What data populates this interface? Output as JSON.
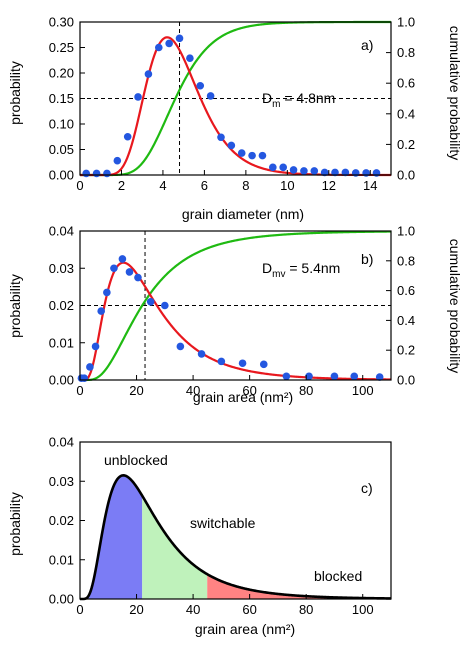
{
  "chart_data": [
    {
      "id": "a",
      "type": "scatter",
      "panel_label": "a)",
      "xlabel": "grain diameter (nm)",
      "ylabel": "probability",
      "y2label": "cumulative probability",
      "xlim": [
        0,
        15
      ],
      "ylim": [
        0,
        0.3
      ],
      "y2lim": [
        0,
        1.0
      ],
      "x_ticks": [
        0,
        2,
        4,
        6,
        8,
        10,
        12,
        14
      ],
      "y_ticks": [
        0.0,
        0.05,
        0.1,
        0.15,
        0.2,
        0.25,
        0.3
      ],
      "y_tick_labels": [
        "0.00",
        "0.05",
        "0.10",
        "0.15",
        "0.20",
        "0.25",
        "0.30"
      ],
      "y2_ticks": [
        0.0,
        0.2,
        0.4,
        0.6,
        0.8,
        1.0
      ],
      "y2_tick_labels": [
        "0.0",
        "0.2",
        "0.4",
        "0.6",
        "0.8",
        "1.0"
      ],
      "annotation": {
        "main": "D",
        "sub": "m",
        "rest": " = 4.8nm"
      },
      "mean_marker": {
        "x": 4.8,
        "cumulative_level": 0.5
      },
      "fit": {
        "dist": "lognormal",
        "median": 4.6,
        "sigma": 0.3,
        "peak_density": 0.27,
        "color": "#e8181e"
      },
      "cumulative_color": "#1fba12",
      "point_color": "#2457e0",
      "points": {
        "x": [
          0.3,
          0.8,
          1.3,
          1.8,
          2.3,
          2.8,
          3.3,
          3.8,
          4.3,
          4.8,
          5.3,
          5.8,
          6.3,
          6.8,
          7.3,
          7.8,
          8.3,
          8.8,
          9.3,
          9.8,
          10.3,
          10.8,
          11.3,
          11.8,
          12.3,
          12.8,
          13.3,
          13.8,
          14.3
        ],
        "y": [
          0.003,
          0.003,
          0.003,
          0.028,
          0.075,
          0.153,
          0.198,
          0.25,
          0.258,
          0.268,
          0.229,
          0.175,
          0.155,
          0.074,
          0.058,
          0.043,
          0.038,
          0.038,
          0.015,
          0.015,
          0.01,
          0.008,
          0.008,
          0.005,
          0.005,
          0.005,
          0.004,
          0.004,
          0.004
        ]
      }
    },
    {
      "id": "b",
      "type": "scatter",
      "panel_label": "b)",
      "xlabel": "grain area (nm²)",
      "ylabel": "probability",
      "y2label": "cumulative probability",
      "xlim": [
        0,
        110
      ],
      "ylim": [
        0,
        0.04
      ],
      "y2lim": [
        0,
        1.0
      ],
      "x_ticks": [
        0,
        20,
        40,
        60,
        80,
        100
      ],
      "y_ticks": [
        0.0,
        0.01,
        0.02,
        0.03,
        0.04
      ],
      "y_tick_labels": [
        "0.00",
        "0.01",
        "0.02",
        "0.03",
        "0.04"
      ],
      "y2_ticks": [
        0.0,
        0.2,
        0.4,
        0.6,
        0.8,
        1.0
      ],
      "y2_tick_labels": [
        "0.0",
        "0.2",
        "0.4",
        "0.6",
        "0.8",
        "1.0"
      ],
      "annotation": {
        "main": "D",
        "sub": "mv",
        "rest": " = 5.4nm"
      },
      "mean_marker": {
        "x": 23,
        "cumulative_level": 0.5
      },
      "fit": {
        "dist": "lognormal",
        "median": 22,
        "sigma": 0.6,
        "peak_density": 0.0315,
        "color": "#e8181e"
      },
      "cumulative_color": "#1fba12",
      "point_color": "#2457e0",
      "points": {
        "x": [
          0.5,
          1.5,
          3.5,
          5.5,
          7.5,
          9.5,
          12,
          15,
          17.5,
          20.5,
          25,
          30,
          35.5,
          43,
          50,
          57.5,
          65,
          73,
          81,
          90,
          97,
          106
        ],
        "y": [
          0.0005,
          0.0005,
          0.0035,
          0.009,
          0.0185,
          0.0235,
          0.03,
          0.0325,
          0.029,
          0.0275,
          0.021,
          0.02,
          0.009,
          0.007,
          0.005,
          0.0045,
          0.0042,
          0.001,
          0.001,
          0.001,
          0.001,
          0.0008
        ]
      }
    },
    {
      "id": "c",
      "type": "area",
      "panel_label": "c)",
      "xlabel": "grain area (nm²)",
      "ylabel": "probability",
      "xlim": [
        0,
        110
      ],
      "ylim": [
        0,
        0.04
      ],
      "x_ticks": [
        0,
        20,
        40,
        60,
        80,
        100
      ],
      "y_ticks": [
        0.0,
        0.01,
        0.02,
        0.03,
        0.04
      ],
      "y_tick_labels": [
        "0.00",
        "0.01",
        "0.02",
        "0.03",
        "0.04"
      ],
      "fit": {
        "dist": "lognormal",
        "median": 22,
        "sigma": 0.6,
        "peak_density": 0.0315,
        "color": "#000000"
      },
      "regions": [
        {
          "name": "unblocked",
          "from": 0,
          "to": 22,
          "color": "#7b7cf5"
        },
        {
          "name": "switchable",
          "from": 22,
          "to": 45,
          "color": "#bff2bb"
        },
        {
          "name": "blocked",
          "from": 45,
          "to": 110,
          "color": "#ff8383"
        }
      ],
      "region_labels": [
        "unblocked",
        "switchable",
        "blocked"
      ]
    }
  ]
}
